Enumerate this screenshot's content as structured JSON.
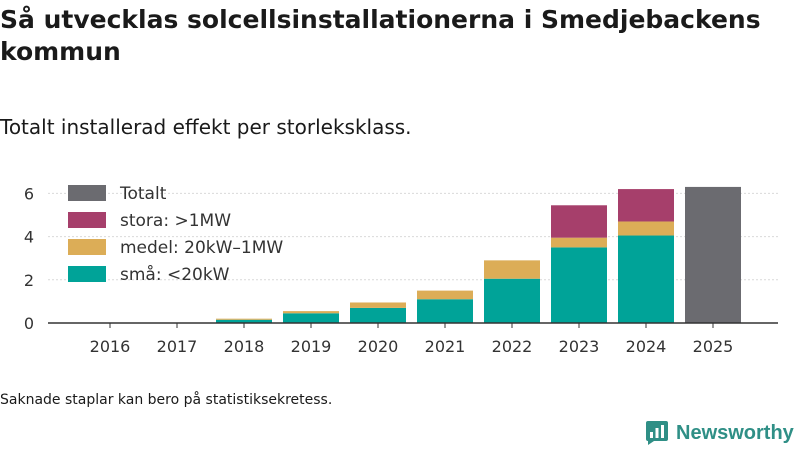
{
  "title": "Så utvecklas solcellsinstallationerna i Smedjebackens kommun",
  "subtitle": "Totalt installerad effekt per storleksklass.",
  "note": "Saknade staplar kan bero på statistiksekretess.",
  "brand": {
    "name": "Newsworthy",
    "icon": "bar-chart-icon",
    "color": "#2f8f86"
  },
  "chart_data": {
    "type": "bar",
    "stacked": true,
    "categories": [
      "2016",
      "2017",
      "2018",
      "2019",
      "2020",
      "2021",
      "2022",
      "2023",
      "2024",
      "2025"
    ],
    "series": [
      {
        "name": "små: <20kW",
        "color": "#00a398",
        "values": [
          null,
          null,
          0.15,
          0.45,
          0.7,
          1.1,
          2.05,
          3.5,
          4.05,
          null
        ]
      },
      {
        "name": "medel: 20kW–1MW",
        "color": "#dcad57",
        "values": [
          null,
          null,
          0.05,
          0.1,
          0.25,
          0.4,
          0.85,
          0.45,
          0.65,
          null
        ]
      },
      {
        "name": "stora: >1MW",
        "color": "#a63f6b",
        "values": [
          null,
          null,
          null,
          null,
          null,
          null,
          null,
          1.5,
          1.5,
          null
        ]
      },
      {
        "name": "Totalt",
        "color": "#6b6b70",
        "values": [
          null,
          null,
          null,
          null,
          null,
          null,
          null,
          null,
          null,
          6.3
        ]
      }
    ],
    "legend_order": [
      "Totalt",
      "stora: >1MW",
      "medel: 20kW–1MW",
      "små: <20kW"
    ],
    "yticks": [
      0,
      2,
      4,
      6
    ],
    "ylim": [
      0,
      6.6
    ],
    "xlabel": "",
    "ylabel": "",
    "grid": true,
    "legend_position": "top-left"
  }
}
